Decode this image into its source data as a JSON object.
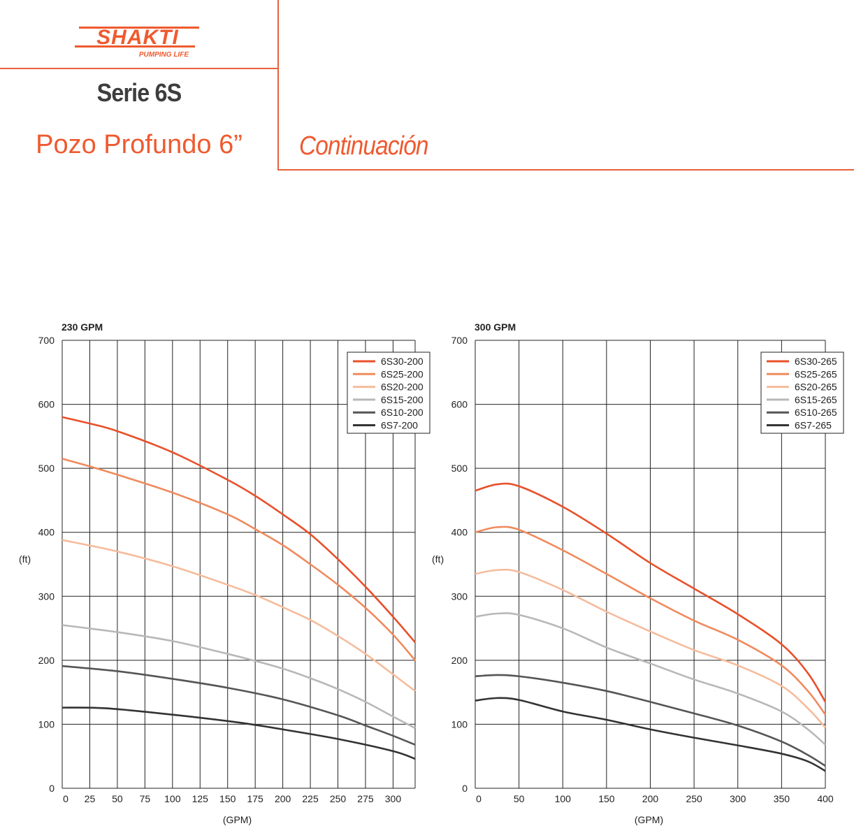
{
  "header": {
    "brand": "SHAKTI",
    "tagline": "PUMPING LIFE",
    "series": "Serie 6S",
    "subtitle": "Pozo Profundo 6”",
    "continuation": "Continuación"
  },
  "chart_data": [
    {
      "type": "line",
      "title": "230 GPM",
      "xlabel": "(GPM)",
      "ylabel": "(ft)",
      "xlim": [
        0,
        320
      ],
      "ylim": [
        0,
        700
      ],
      "xticks": [
        0,
        25,
        50,
        75,
        100,
        125,
        150,
        175,
        200,
        225,
        250,
        275,
        300
      ],
      "yticks": [
        0,
        100,
        200,
        300,
        400,
        500,
        600,
        700
      ],
      "grid": true,
      "legend": "top-right",
      "series": [
        {
          "name": "6S30-200",
          "color": "#e8502a",
          "x": [
            0,
            25,
            50,
            100,
            150,
            175,
            200,
            225,
            250,
            275,
            300,
            320
          ],
          "y": [
            580,
            570,
            558,
            525,
            482,
            457,
            428,
            397,
            358,
            315,
            268,
            228
          ]
        },
        {
          "name": "6S25-200",
          "color": "#f08a5d",
          "x": [
            0,
            25,
            50,
            100,
            150,
            175,
            200,
            225,
            250,
            275,
            300,
            320
          ],
          "y": [
            515,
            503,
            490,
            462,
            428,
            405,
            380,
            350,
            318,
            282,
            240,
            200
          ]
        },
        {
          "name": "6S20-200",
          "color": "#f5bc9c",
          "x": [
            0,
            50,
            100,
            150,
            175,
            200,
            225,
            250,
            275,
            300,
            320
          ],
          "y": [
            388,
            370,
            347,
            318,
            302,
            283,
            263,
            238,
            210,
            178,
            152
          ]
        },
        {
          "name": "6S15-200",
          "color": "#b8b8b8",
          "x": [
            0,
            50,
            100,
            150,
            175,
            200,
            225,
            250,
            275,
            300,
            320
          ],
          "y": [
            255,
            244,
            230,
            210,
            199,
            187,
            172,
            155,
            135,
            112,
            94
          ]
        },
        {
          "name": "6S10-200",
          "color": "#555555",
          "x": [
            0,
            50,
            100,
            150,
            200,
            250,
            275,
            300,
            320
          ],
          "y": [
            191,
            183,
            171,
            157,
            139,
            114,
            98,
            82,
            68
          ]
        },
        {
          "name": "6S7-200",
          "color": "#333333",
          "x": [
            0,
            40,
            100,
            150,
            175,
            200,
            250,
            300,
            320
          ],
          "y": [
            126,
            125,
            115,
            105,
            99,
            92,
            77,
            58,
            46
          ]
        }
      ]
    },
    {
      "type": "line",
      "title": "300 GPM",
      "xlabel": "(GPM)",
      "ylabel": "(ft)",
      "xlim": [
        0,
        400
      ],
      "ylim": [
        0,
        700
      ],
      "xticks": [
        0,
        50,
        100,
        150,
        200,
        250,
        300,
        350,
        400
      ],
      "yticks": [
        0,
        100,
        200,
        300,
        400,
        500,
        600,
        700
      ],
      "grid": true,
      "legend": "top-right",
      "series": [
        {
          "name": "6S30-265",
          "color": "#e8502a",
          "x": [
            0,
            25,
            50,
            100,
            150,
            200,
            250,
            300,
            350,
            380,
            400
          ],
          "y": [
            465,
            475,
            472,
            440,
            398,
            352,
            312,
            272,
            225,
            180,
            135
          ]
        },
        {
          "name": "6S25-265",
          "color": "#f08a5d",
          "x": [
            0,
            25,
            50,
            100,
            150,
            200,
            250,
            300,
            350,
            380,
            400
          ],
          "y": [
            400,
            408,
            404,
            372,
            335,
            297,
            262,
            232,
            192,
            152,
            115
          ]
        },
        {
          "name": "6S20-265",
          "color": "#f5bc9c",
          "x": [
            0,
            25,
            50,
            100,
            150,
            200,
            250,
            300,
            350,
            380,
            400
          ],
          "y": [
            335,
            341,
            338,
            310,
            276,
            245,
            216,
            192,
            160,
            125,
            95
          ]
        },
        {
          "name": "6S15-265",
          "color": "#b8b8b8",
          "x": [
            0,
            25,
            50,
            100,
            150,
            200,
            250,
            300,
            350,
            380,
            400
          ],
          "y": [
            268,
            273,
            271,
            250,
            220,
            195,
            170,
            148,
            120,
            92,
            68
          ]
        },
        {
          "name": "6S10-265",
          "color": "#555555",
          "x": [
            0,
            25,
            50,
            100,
            150,
            200,
            250,
            300,
            350,
            380,
            400
          ],
          "y": [
            175,
            177,
            175,
            165,
            152,
            135,
            117,
            98,
            73,
            52,
            35
          ]
        },
        {
          "name": "6S7-265",
          "color": "#333333",
          "x": [
            0,
            25,
            50,
            100,
            150,
            200,
            250,
            300,
            350,
            380,
            400
          ],
          "y": [
            137,
            141,
            138,
            120,
            107,
            92,
            79,
            67,
            54,
            42,
            27
          ]
        }
      ]
    }
  ]
}
